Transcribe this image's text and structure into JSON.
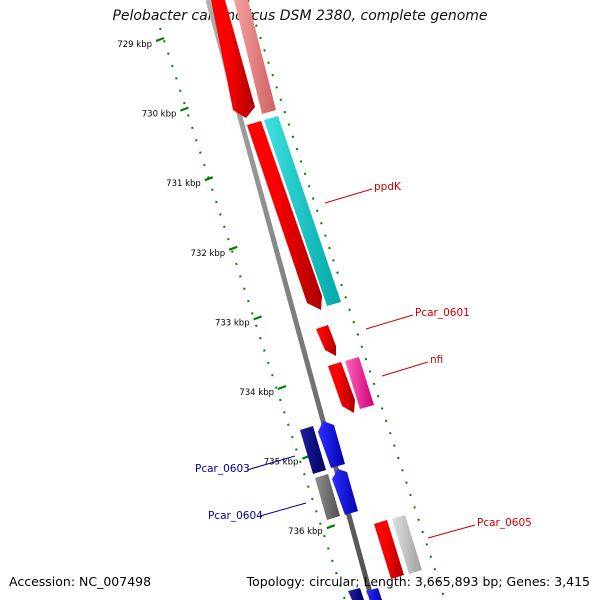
{
  "title": "Pelobacter carbinolicus DSM 2380, complete genome",
  "accession": "Accession: NC_007498",
  "summary": "Topology: circular; Length: 3,665,893 bp; Genes: 3,415",
  "ticks": [
    {
      "label": "729 kbp",
      "kbp": 729
    },
    {
      "label": "730 kbp",
      "kbp": 730
    },
    {
      "label": "731 kbp",
      "kbp": 731
    },
    {
      "label": "732 kbp",
      "kbp": 732
    },
    {
      "label": "733 kbp",
      "kbp": 733
    },
    {
      "label": "734 kbp",
      "kbp": 734
    },
    {
      "label": "735 kbp",
      "kbp": 735
    },
    {
      "label": "736 kbp",
      "kbp": 736
    }
  ],
  "gene_labels": [
    {
      "text": "ppdK",
      "color": "#cc0000"
    },
    {
      "text": "Pcar_0601",
      "color": "#cc0000"
    },
    {
      "text": "nfi",
      "color": "#cc0000"
    },
    {
      "text": "Pcar_0603",
      "color": "#000099"
    },
    {
      "text": "Pcar_0604",
      "color": "#000099"
    },
    {
      "text": "Pcar_0605",
      "color": "#cc0000"
    }
  ],
  "colors": {
    "forward": "#ff0000",
    "reverse": "#0000ff",
    "ppdK_cog": "#00cccc",
    "nfi_cog": "#ff3399",
    "forward_cog_pink": "#f08080",
    "navy_cog": "#000080",
    "gray_cog": "#808080",
    "light_gray_cog": "#c0c0c0",
    "tick": "#008000",
    "backbone": "#808080"
  }
}
